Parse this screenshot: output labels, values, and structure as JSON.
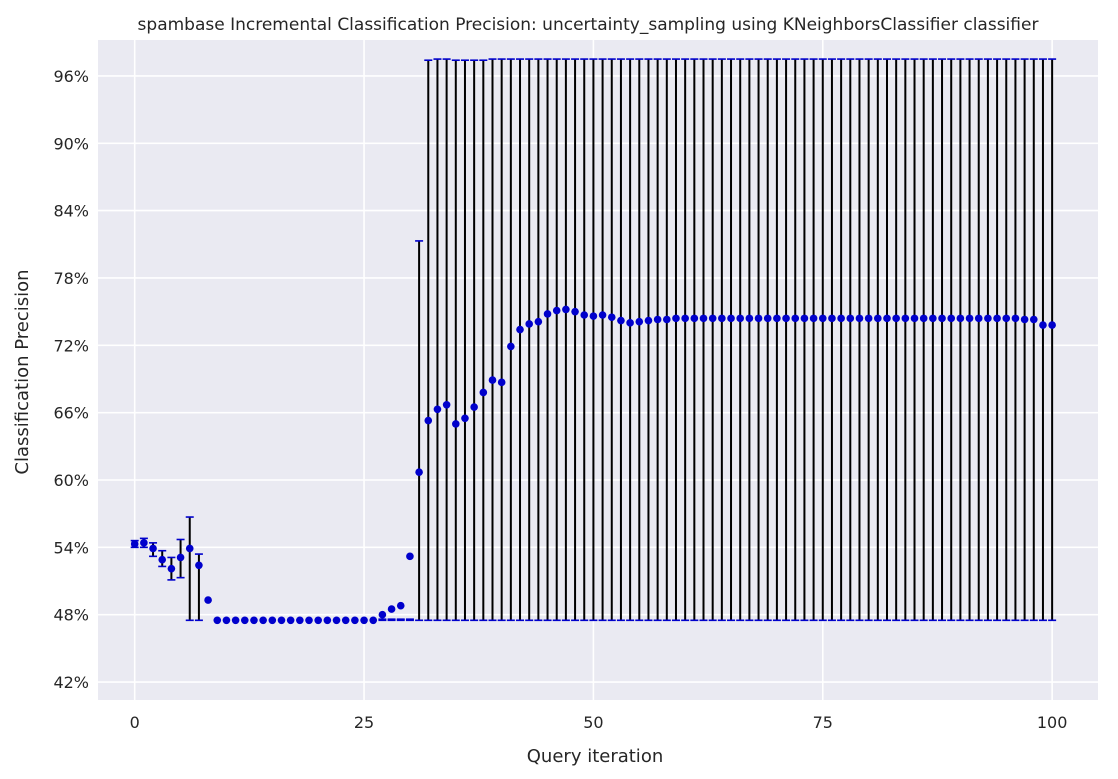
{
  "chart_data": {
    "type": "scatter",
    "title": "spambase Incremental Classification Precision: uncertainty_sampling using KNeighborsClassifier classifier",
    "xlabel": "Query iteration",
    "ylabel": "Classification Precision",
    "xlim": [
      -4,
      105
    ],
    "ylim": [
      40.4,
      99.2
    ],
    "xticks": [
      0,
      25,
      50,
      75,
      100
    ],
    "xtick_labels": [
      "0",
      "25",
      "50",
      "75",
      "100"
    ],
    "yticks": [
      42,
      48,
      54,
      60,
      66,
      72,
      78,
      84,
      90,
      96
    ],
    "ytick_labels": [
      "42%",
      "48%",
      "54%",
      "60%",
      "66%",
      "72%",
      "78%",
      "84%",
      "90%",
      "96%"
    ],
    "grid": true,
    "colors": {
      "background": "#eaeaf2",
      "grid": "#ffffff",
      "point": "#0000cc",
      "errorbar": "#000000",
      "cap": "#0000cc"
    },
    "series": [
      {
        "x": [
          0,
          1,
          2,
          3,
          4,
          5,
          6,
          7,
          8,
          9,
          10,
          11,
          12,
          13,
          14,
          15,
          16,
          17,
          18,
          19,
          20,
          21,
          22,
          23,
          24,
          25,
          26,
          27,
          28,
          29,
          30,
          31,
          32,
          33,
          34,
          35,
          36,
          37,
          38,
          39,
          40,
          41,
          42,
          43,
          44,
          45,
          46,
          47,
          48,
          49,
          50,
          51,
          52,
          53,
          54,
          55,
          56,
          57,
          58,
          59,
          60,
          61,
          62,
          63,
          64,
          65,
          66,
          67,
          68,
          69,
          70,
          71,
          72,
          73,
          74,
          75,
          76,
          77,
          78,
          79,
          80,
          81,
          82,
          83,
          84,
          85,
          86,
          87,
          88,
          89,
          90,
          91,
          92,
          93,
          94,
          95,
          96,
          97,
          98,
          99,
          100
        ],
        "y": [
          54.3,
          54.4,
          53.9,
          52.9,
          52.1,
          53.1,
          53.9,
          52.4,
          49.3,
          47.5,
          47.5,
          47.5,
          47.5,
          47.5,
          47.5,
          47.5,
          47.5,
          47.5,
          47.5,
          47.5,
          47.5,
          47.5,
          47.5,
          47.5,
          47.5,
          47.5,
          47.5,
          48.0,
          48.5,
          48.8,
          53.2,
          60.7,
          65.3,
          66.3,
          66.7,
          65.0,
          65.5,
          66.5,
          67.8,
          68.9,
          68.7,
          71.9,
          73.4,
          73.9,
          74.1,
          74.8,
          75.1,
          75.2,
          75.0,
          74.7,
          74.6,
          74.7,
          74.5,
          74.2,
          74.0,
          74.1,
          74.2,
          74.3,
          74.3,
          74.4,
          74.4,
          74.4,
          74.4,
          74.4,
          74.4,
          74.4,
          74.4,
          74.4,
          74.4,
          74.4,
          74.4,
          74.4,
          74.4,
          74.4,
          74.4,
          74.4,
          74.4,
          74.4,
          74.4,
          74.4,
          74.4,
          74.4,
          74.4,
          74.4,
          74.4,
          74.4,
          74.4,
          74.4,
          74.4,
          74.4,
          74.4,
          74.4,
          74.4,
          74.4,
          74.4,
          74.4,
          74.4,
          74.3,
          74.3,
          73.8,
          73.8
        ],
        "err_low": [
          54.0,
          54.0,
          53.2,
          52.3,
          51.1,
          51.3,
          47.5,
          47.5,
          null,
          null,
          null,
          null,
          null,
          null,
          null,
          null,
          null,
          null,
          null,
          null,
          null,
          null,
          null,
          null,
          null,
          null,
          null,
          47.5,
          47.5,
          47.5,
          47.5,
          47.5,
          47.5,
          47.5,
          47.5,
          47.5,
          47.5,
          47.5,
          47.5,
          47.5,
          47.5,
          47.5,
          47.5,
          47.5,
          47.5,
          47.5,
          47.5,
          47.5,
          47.5,
          47.5,
          47.5,
          47.5,
          47.5,
          47.5,
          47.5,
          47.5,
          47.5,
          47.5,
          47.5,
          47.5,
          47.5,
          47.5,
          47.5,
          47.5,
          47.5,
          47.5,
          47.5,
          47.5,
          47.5,
          47.5,
          47.5,
          47.5,
          47.5,
          47.5,
          47.5,
          47.5,
          47.5,
          47.5,
          47.5,
          47.5,
          47.5,
          47.5,
          47.5,
          47.5,
          47.5,
          47.5,
          47.5,
          47.5,
          47.5,
          47.5,
          47.5,
          47.5,
          47.5,
          47.5,
          47.5,
          47.5,
          47.5,
          47.5,
          47.5,
          47.5,
          47.5
        ],
        "err_high": [
          54.6,
          54.8,
          54.4,
          53.7,
          53.1,
          54.7,
          56.7,
          53.4,
          null,
          null,
          null,
          null,
          null,
          null,
          null,
          null,
          null,
          null,
          null,
          null,
          null,
          null,
          null,
          null,
          null,
          null,
          null,
          47.6,
          47.6,
          47.6,
          47.6,
          81.3,
          97.4,
          97.5,
          97.5,
          97.4,
          97.4,
          97.4,
          97.4,
          97.5,
          97.5,
          97.5,
          97.5,
          97.5,
          97.5,
          97.5,
          97.5,
          97.5,
          97.5,
          97.5,
          97.5,
          97.5,
          97.5,
          97.5,
          97.5,
          97.5,
          97.5,
          97.5,
          97.5,
          97.5,
          97.5,
          97.5,
          97.5,
          97.5,
          97.5,
          97.5,
          97.5,
          97.5,
          97.5,
          97.5,
          97.5,
          97.5,
          97.5,
          97.5,
          97.5,
          97.5,
          97.5,
          97.5,
          97.5,
          97.5,
          97.5,
          97.5,
          97.5,
          97.5,
          97.5,
          97.5,
          97.5,
          97.5,
          97.5,
          97.5,
          97.5,
          97.5,
          97.5,
          97.5,
          97.5,
          97.5,
          97.5,
          97.5,
          97.5,
          97.5,
          97.5
        ]
      }
    ]
  }
}
